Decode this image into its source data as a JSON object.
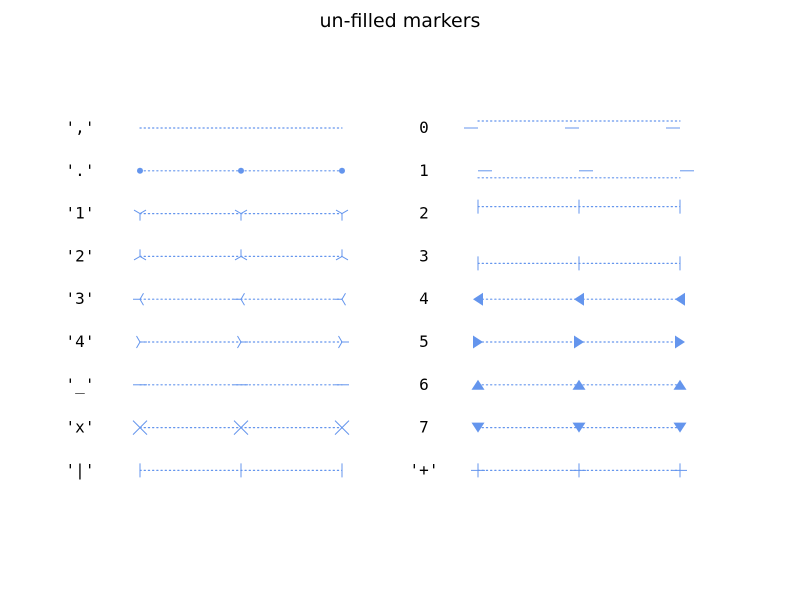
{
  "chart_data": {
    "type": "scatter",
    "title": "un-filled markers",
    "color": "#6495ed",
    "line_style": "dotted",
    "x": [
      0,
      1,
      2
    ],
    "columns": [
      {
        "rows": [
          {
            "label": "','",
            "marker": "pixel",
            "y": 0
          },
          {
            "label": "'.'",
            "marker": "point",
            "y": 1
          },
          {
            "label": "'1'",
            "marker": "tri_down",
            "y": 2
          },
          {
            "label": "'2'",
            "marker": "tri_up",
            "y": 3
          },
          {
            "label": "'3'",
            "marker": "tri_left",
            "y": 4
          },
          {
            "label": "'4'",
            "marker": "tri_right",
            "y": 5
          },
          {
            "label": "'_'",
            "marker": "hline",
            "y": 6
          },
          {
            "label": "'x'",
            "marker": "x",
            "y": 7
          },
          {
            "label": "'|'",
            "marker": "vline",
            "y": 8
          }
        ]
      },
      {
        "rows": [
          {
            "label": "0",
            "marker": "tickleft",
            "y": 0
          },
          {
            "label": "1",
            "marker": "tickright",
            "y": 1
          },
          {
            "label": "2",
            "marker": "tickup",
            "y": 2
          },
          {
            "label": "3",
            "marker": "tickdown",
            "y": 3
          },
          {
            "label": "4",
            "marker": "caretleft",
            "y": 4
          },
          {
            "label": "5",
            "marker": "caretright",
            "y": 5
          },
          {
            "label": "6",
            "marker": "caretup",
            "y": 6
          },
          {
            "label": "7",
            "marker": "caretdown",
            "y": 7
          },
          {
            "label": "'+'",
            "marker": "plus",
            "y": 8
          }
        ]
      }
    ]
  }
}
